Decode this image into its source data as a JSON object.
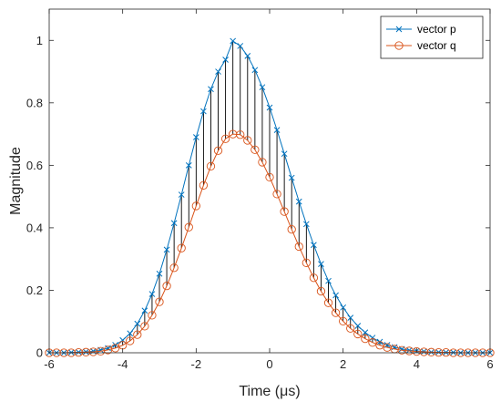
{
  "chart_data": {
    "type": "line",
    "xlabel": "Time (μs)",
    "ylabel": "Magnitude",
    "xlim": [
      -6,
      6
    ],
    "ylim": [
      0,
      1.1
    ],
    "xticks": [
      -6,
      -4,
      -2,
      0,
      2,
      4,
      6
    ],
    "yticks": [
      0,
      0.2,
      0.4,
      0.6,
      0.8,
      1
    ],
    "xtick_labels": [
      "-6",
      "-4",
      "-2",
      "0",
      "2",
      "4",
      "6"
    ],
    "ytick_labels": [
      "0",
      "0.2",
      "0.4",
      "0.6",
      "0.8",
      "1"
    ],
    "legend_position": "top-right",
    "grid": false,
    "stems": "black vertical lines join vector p and vector q at each sample",
    "x": [
      -6.0,
      -5.8,
      -5.6,
      -5.4,
      -5.2,
      -5.0,
      -4.8,
      -4.6,
      -4.4,
      -4.2,
      -4.0,
      -3.8,
      -3.6,
      -3.4,
      -3.2,
      -3.0,
      -2.8,
      -2.6,
      -2.4,
      -2.2,
      -2.0,
      -1.8,
      -1.6,
      -1.4,
      -1.2,
      -1.0,
      -0.8,
      -0.6,
      -0.4,
      -0.2,
      0.0,
      0.2,
      0.4,
      0.6,
      0.8,
      1.0,
      1.2,
      1.4,
      1.6,
      1.8,
      2.0,
      2.2,
      2.4,
      2.6,
      2.8,
      3.0,
      3.2,
      3.4,
      3.6,
      3.8,
      4.0,
      4.2,
      4.4,
      4.6,
      4.8,
      5.0,
      5.2,
      5.4,
      5.6,
      5.8,
      6.0
    ],
    "series": [
      {
        "name": "vector p",
        "color": "#0072BD",
        "marker": "x",
        "values": [
          0.0,
          0.0,
          0.0,
          0.001,
          0.002,
          0.003,
          0.005,
          0.009,
          0.015,
          0.025,
          0.04,
          0.062,
          0.093,
          0.135,
          0.188,
          0.253,
          0.33,
          0.415,
          0.506,
          0.6,
          0.69,
          0.773,
          0.844,
          0.9,
          0.938,
          0.998,
          0.982,
          0.95,
          0.905,
          0.85,
          0.785,
          0.713,
          0.637,
          0.56,
          0.484,
          0.412,
          0.345,
          0.284,
          0.23,
          0.184,
          0.145,
          0.112,
          0.086,
          0.065,
          0.048,
          0.035,
          0.025,
          0.018,
          0.012,
          0.008,
          0.006,
          0.004,
          0.002,
          0.002,
          0.001,
          0.001,
          0.0,
          0.0,
          0.0,
          0.0,
          0.0
        ]
      },
      {
        "name": "vector q",
        "color": "#D95319",
        "marker": "o",
        "values": [
          0.0,
          0.0,
          0.0,
          0.0,
          0.001,
          0.002,
          0.003,
          0.005,
          0.009,
          0.015,
          0.024,
          0.038,
          0.058,
          0.085,
          0.12,
          0.163,
          0.214,
          0.272,
          0.335,
          0.402,
          0.47,
          0.536,
          0.597,
          0.647,
          0.685,
          0.7,
          0.698,
          0.68,
          0.65,
          0.61,
          0.562,
          0.508,
          0.452,
          0.395,
          0.34,
          0.288,
          0.24,
          0.197,
          0.16,
          0.128,
          0.101,
          0.078,
          0.06,
          0.045,
          0.033,
          0.024,
          0.017,
          0.012,
          0.008,
          0.006,
          0.004,
          0.003,
          0.002,
          0.001,
          0.001,
          0.0,
          0.0,
          0.0,
          0.0,
          0.0,
          0.0
        ]
      }
    ]
  }
}
